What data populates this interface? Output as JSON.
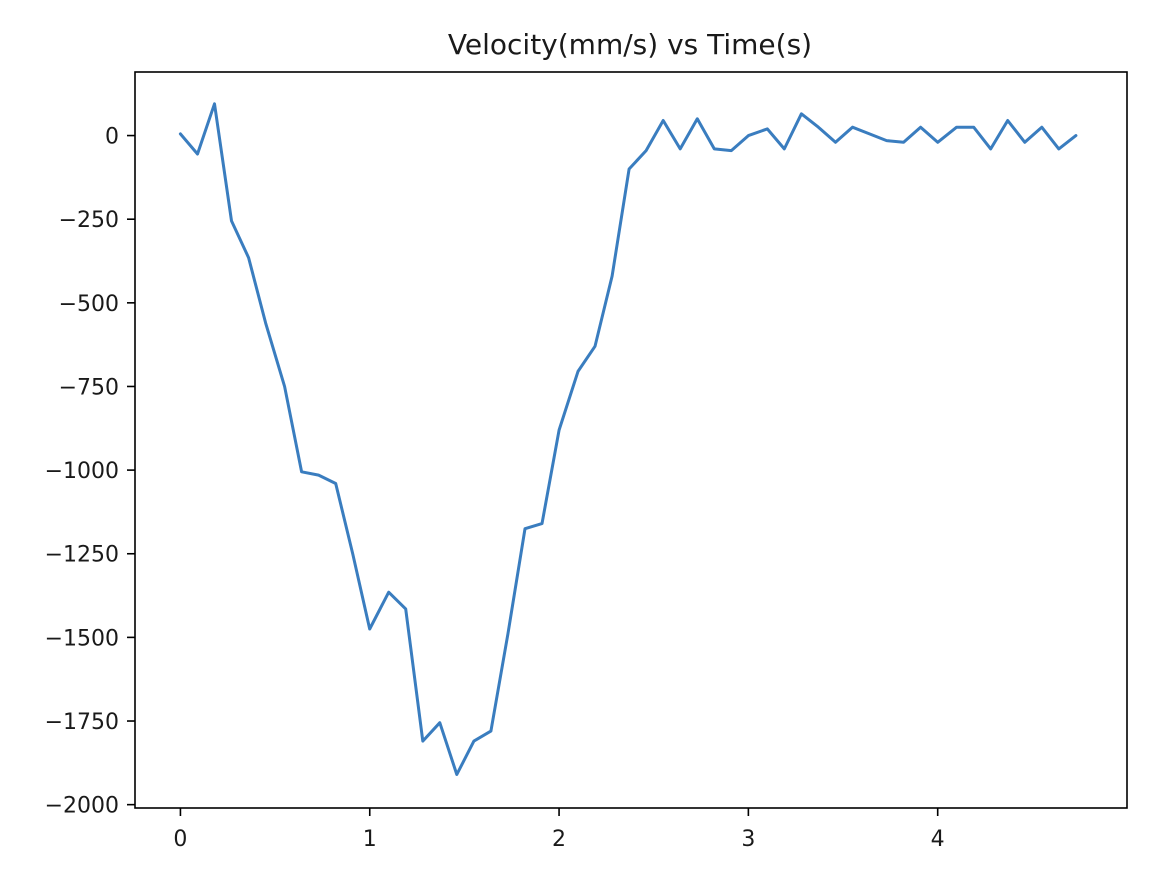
{
  "chart_data": {
    "type": "line",
    "title": "Velocity(mm/s) vs Time(s)",
    "xlabel": "",
    "ylabel": "",
    "xlim": [
      -0.24,
      5.0
    ],
    "ylim": [
      -2010,
      190
    ],
    "xticks": [
      0,
      1,
      2,
      3,
      4
    ],
    "yticks": [
      0,
      -250,
      -500,
      -750,
      -1000,
      -1250,
      -1500,
      -1750,
      -2000
    ],
    "xtick_labels": [
      "0",
      "1",
      "2",
      "3",
      "4"
    ],
    "ytick_labels": [
      "0",
      "−250",
      "−500",
      "−750",
      "−1000",
      "−1250",
      "−1500",
      "−1750",
      "−2000"
    ],
    "grid": false,
    "line_color": "#3a7dbf",
    "series": [
      {
        "x": [
          0.0,
          0.09,
          0.18,
          0.27,
          0.36,
          0.45,
          0.55,
          0.64,
          0.73,
          0.82,
          0.91,
          1.0,
          1.1,
          1.19,
          1.28,
          1.37,
          1.46,
          1.55,
          1.64,
          1.73,
          1.82,
          1.91,
          2.0,
          2.1,
          2.19,
          2.28,
          2.37,
          2.46,
          2.55,
          2.64,
          2.73,
          2.82,
          2.91,
          3.0,
          3.1,
          3.19,
          3.28,
          3.37,
          3.46,
          3.55,
          3.64,
          3.73,
          3.82,
          3.91,
          4.0,
          4.1,
          4.19,
          4.28,
          4.37,
          4.46,
          4.55,
          4.64,
          4.73
        ],
        "y": [
          5,
          -55,
          95,
          -255,
          -365,
          -560,
          -750,
          -1005,
          -1015,
          -1040,
          -1250,
          -1475,
          -1365,
          -1415,
          -1810,
          -1755,
          -1910,
          -1810,
          -1780,
          -1490,
          -1175,
          -1160,
          -880,
          -705,
          -630,
          -420,
          -100,
          -45,
          45,
          -40,
          50,
          -40,
          -45,
          0,
          20,
          -40,
          65,
          25,
          -20,
          25,
          5,
          -15,
          -20,
          25,
          -20,
          25,
          25,
          -40,
          45,
          -20,
          25,
          -40,
          0
        ]
      }
    ]
  }
}
